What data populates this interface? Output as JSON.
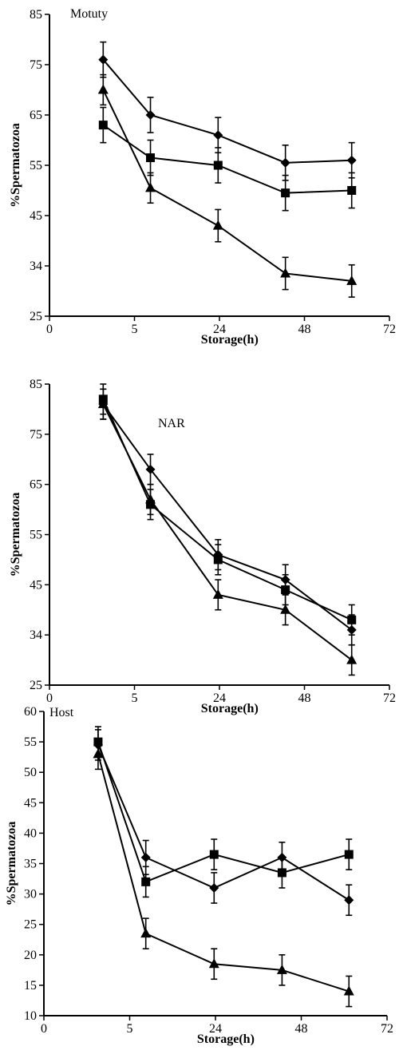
{
  "chart_data": [
    {
      "type": "line",
      "title": "Motuty",
      "xlabel": "Storage(h)",
      "ylabel": "%Spermatozoa",
      "x_ticks": [
        "0",
        "5",
        "24",
        "48",
        "72"
      ],
      "y_ticks": [
        "25",
        "34",
        "45",
        "55",
        "65",
        "75",
        "85"
      ],
      "ylim": [
        25,
        85
      ],
      "grid": false,
      "legend": "none",
      "x_points": [
        1,
        2,
        3,
        4,
        5
      ],
      "series": [
        {
          "marker": "diamond",
          "values": [
            76,
            65,
            61,
            55.5,
            56
          ],
          "errors": [
            3.5,
            3.5,
            3.5,
            3.5,
            3.5
          ]
        },
        {
          "marker": "square",
          "values": [
            63,
            56.5,
            55,
            49.5,
            50
          ],
          "errors": [
            3.5,
            3.5,
            3.5,
            3.5,
            3.5
          ]
        },
        {
          "marker": "triangle",
          "values": [
            70,
            50.5,
            43,
            33.5,
            32
          ],
          "errors": [
            3,
            3,
            3.2,
            3.2,
            3.2
          ]
        }
      ]
    },
    {
      "type": "line",
      "title": "NAR",
      "xlabel": "Storage(h)",
      "ylabel": "%Spermatozoa",
      "x_ticks": [
        "0",
        "5",
        "24",
        "48",
        "72"
      ],
      "y_ticks": [
        "25",
        "34",
        "45",
        "55",
        "65",
        "75",
        "85"
      ],
      "ylim": [
        25,
        85
      ],
      "grid": false,
      "legend": "none",
      "x_points": [
        1,
        2,
        3,
        4,
        5
      ],
      "series": [
        {
          "marker": "diamond",
          "values": [
            81,
            68,
            51,
            46,
            36
          ],
          "errors": [
            3,
            3,
            3,
            3,
            3
          ]
        },
        {
          "marker": "square",
          "values": [
            82,
            61,
            50,
            44,
            38
          ],
          "errors": [
            3,
            3,
            3,
            3,
            3
          ]
        },
        {
          "marker": "triangle",
          "values": [
            81,
            62,
            43,
            40,
            30
          ],
          "errors": [
            3,
            3,
            3,
            3,
            3
          ]
        }
      ]
    },
    {
      "type": "line",
      "title": "Host",
      "xlabel": "Storage(h)",
      "ylabel": "%Spermatozoa",
      "x_ticks": [
        "0",
        "5",
        "24",
        "48",
        "72"
      ],
      "y_ticks": [
        "10",
        "15",
        "20",
        "25",
        "30",
        "35",
        "40",
        "45",
        "50",
        "55",
        "60"
      ],
      "ylim": [
        10,
        60
      ],
      "grid": false,
      "legend": "none",
      "x_points": [
        1,
        2,
        3,
        4,
        5
      ],
      "series": [
        {
          "marker": "diamond",
          "values": [
            54.5,
            36,
            31,
            36,
            29
          ],
          "errors": [
            2.5,
            2.8,
            2.5,
            2.5,
            2.5
          ]
        },
        {
          "marker": "square",
          "values": [
            55,
            32,
            36.5,
            33.5,
            36.5
          ],
          "errors": [
            2.5,
            2.5,
            2.5,
            2.5,
            2.5
          ]
        },
        {
          "marker": "triangle",
          "values": [
            53,
            23.5,
            18.5,
            17.5,
            14
          ],
          "errors": [
            2.5,
            2.5,
            2.5,
            2.5,
            2.5
          ]
        }
      ]
    }
  ]
}
